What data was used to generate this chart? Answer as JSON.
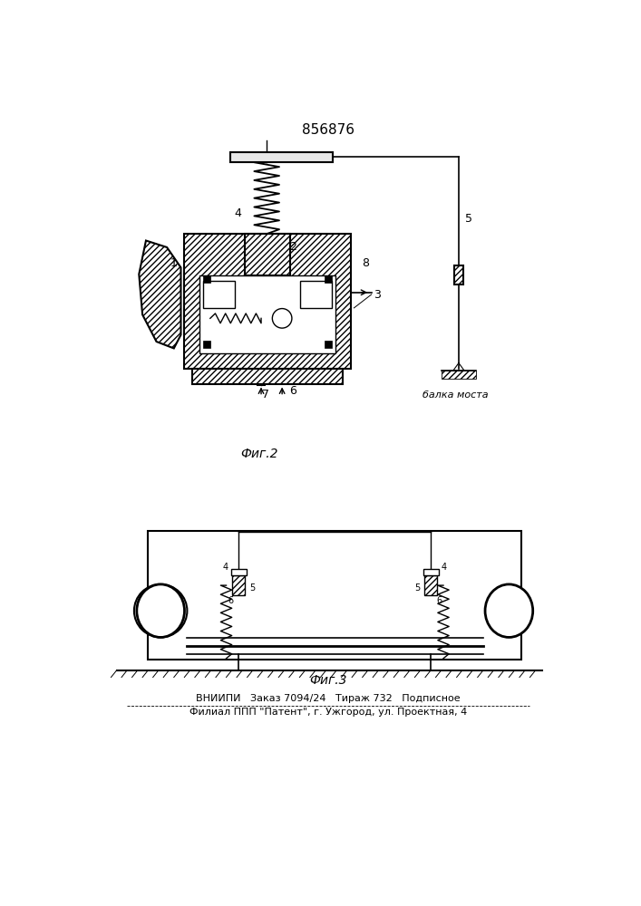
{
  "title": "856876",
  "fig2_label": "Фиг.2",
  "fig3_label": "Фиг.3",
  "balka_label": "балка моста",
  "footer_line1": "ВНИИПИ   Заказ 7094/24   Тираж 732   Подписное",
  "footer_line2": "Филиал ППП \"Патент\", г. Ужгород, ул. Проектная, 4",
  "bg_color": "#ffffff",
  "lc": "#000000",
  "figsize": [
    7.07,
    10.0
  ],
  "dpi": 100
}
